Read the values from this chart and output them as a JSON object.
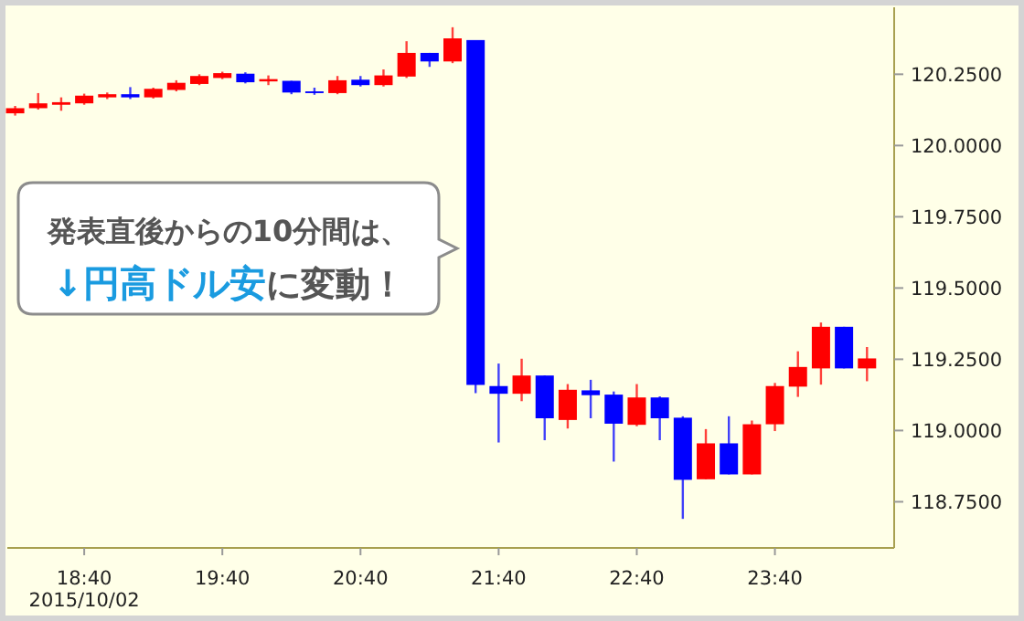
{
  "chart_data": {
    "type": "candlestick",
    "x": [
      18.1667,
      18.3333,
      18.5,
      18.6667,
      18.8333,
      19.0,
      19.1667,
      19.3333,
      19.5,
      19.6667,
      19.8333,
      20.0,
      20.1667,
      20.3333,
      20.5,
      20.6667,
      20.8333,
      21.0,
      21.1667,
      21.3333,
      21.5,
      21.6667,
      21.8333,
      22.0,
      22.1667,
      22.3333,
      22.5,
      22.6667,
      22.8333,
      23.0,
      23.1667,
      23.3333,
      23.5,
      23.6667,
      23.8333,
      24.0,
      24.1667,
      24.3333
    ],
    "ohlc": [
      [
        120.113,
        120.139,
        120.105,
        120.131
      ],
      [
        120.131,
        120.184,
        120.126,
        120.148
      ],
      [
        120.143,
        120.169,
        120.122,
        120.152
      ],
      [
        120.148,
        120.182,
        120.143,
        120.175
      ],
      [
        120.169,
        120.186,
        120.163,
        120.18
      ],
      [
        120.18,
        120.205,
        120.163,
        120.169
      ],
      [
        120.169,
        120.203,
        120.165,
        120.199
      ],
      [
        120.195,
        120.229,
        120.19,
        120.22
      ],
      [
        120.216,
        120.25,
        120.212,
        120.244
      ],
      [
        120.237,
        120.259,
        120.233,
        120.254
      ],
      [
        120.252,
        120.257,
        120.218,
        120.222
      ],
      [
        120.225,
        120.246,
        120.212,
        120.233
      ],
      [
        120.227,
        120.227,
        120.18,
        120.186
      ],
      [
        120.19,
        120.203,
        120.178,
        120.184
      ],
      [
        120.184,
        120.244,
        120.18,
        120.229
      ],
      [
        120.231,
        120.244,
        120.207,
        120.212
      ],
      [
        120.212,
        120.267,
        120.207,
        120.246
      ],
      [
        120.242,
        120.366,
        120.237,
        120.325
      ],
      [
        120.325,
        120.325,
        120.276,
        120.295
      ],
      [
        120.295,
        120.415,
        120.289,
        120.376
      ],
      [
        120.37,
        120.37,
        119.131,
        119.16
      ],
      [
        119.156,
        119.235,
        118.958,
        119.129
      ],
      [
        119.129,
        119.252,
        119.103,
        119.193
      ],
      [
        119.193,
        119.193,
        118.966,
        119.043
      ],
      [
        119.037,
        119.163,
        119.007,
        119.143
      ],
      [
        119.141,
        119.178,
        119.043,
        119.124
      ],
      [
        119.126,
        119.137,
        118.891,
        119.024
      ],
      [
        119.02,
        119.163,
        119.015,
        119.116
      ],
      [
        119.116,
        119.12,
        118.966,
        119.043
      ],
      [
        119.045,
        119.05,
        118.69,
        118.827
      ],
      [
        118.829,
        119.005,
        118.829,
        118.955
      ],
      [
        118.955,
        119.05,
        118.846,
        118.846
      ],
      [
        118.846,
        119.035,
        118.846,
        119.022
      ],
      [
        119.022,
        119.167,
        118.998,
        119.156
      ],
      [
        119.154,
        119.278,
        119.118,
        119.223
      ],
      [
        119.218,
        119.379,
        119.161,
        119.364
      ],
      [
        119.364,
        119.364,
        119.218,
        119.218
      ],
      [
        119.218,
        119.293,
        119.173,
        119.253
      ]
    ],
    "colors": [
      "#ff0000",
      "#ff0000",
      "#ff0000",
      "#ff0000",
      "#ff0000",
      "#0000ff",
      "#ff0000",
      "#ff0000",
      "#ff0000",
      "#ff0000",
      "#0000ff",
      "#ff0000",
      "#0000ff",
      "#0000ff",
      "#ff0000",
      "#0000ff",
      "#ff0000",
      "#ff0000",
      "#0000ff",
      "#ff0000",
      "#0000ff",
      "#0000ff",
      "#ff0000",
      "#0000ff",
      "#ff0000",
      "#0000ff",
      "#0000ff",
      "#ff0000",
      "#0000ff",
      "#0000ff",
      "#ff0000",
      "#0000ff",
      "#ff0000",
      "#ff0000",
      "#ff0000",
      "#ff0000",
      "#0000ff",
      "#ff0000"
    ],
    "xlim": [
      18.11,
      24.53
    ],
    "ylim": [
      118.588,
      120.485
    ],
    "xticks": [
      {
        "value": 18.6667,
        "label": "18:40\n2015/10/02"
      },
      {
        "value": 19.6667,
        "label": "19:40"
      },
      {
        "value": 20.6667,
        "label": "20:40"
      },
      {
        "value": 21.6667,
        "label": "21:40"
      },
      {
        "value": 22.6667,
        "label": "22:40"
      },
      {
        "value": 23.6667,
        "label": "23:40"
      }
    ],
    "yticks": [
      {
        "value": 118.75,
        "label": "118.7500"
      },
      {
        "value": 119.0,
        "label": "119.0000"
      },
      {
        "value": 119.25,
        "label": "119.2500"
      },
      {
        "value": 119.5,
        "label": "119.5000"
      },
      {
        "value": 119.75,
        "label": "119.7500"
      },
      {
        "value": 120.0,
        "label": "120.0000"
      },
      {
        "value": 120.25,
        "label": "120.2500"
      }
    ],
    "annotations": [
      "発表直後からの10分間は、",
      "↓円高ドル安",
      "に変動！"
    ]
  }
}
